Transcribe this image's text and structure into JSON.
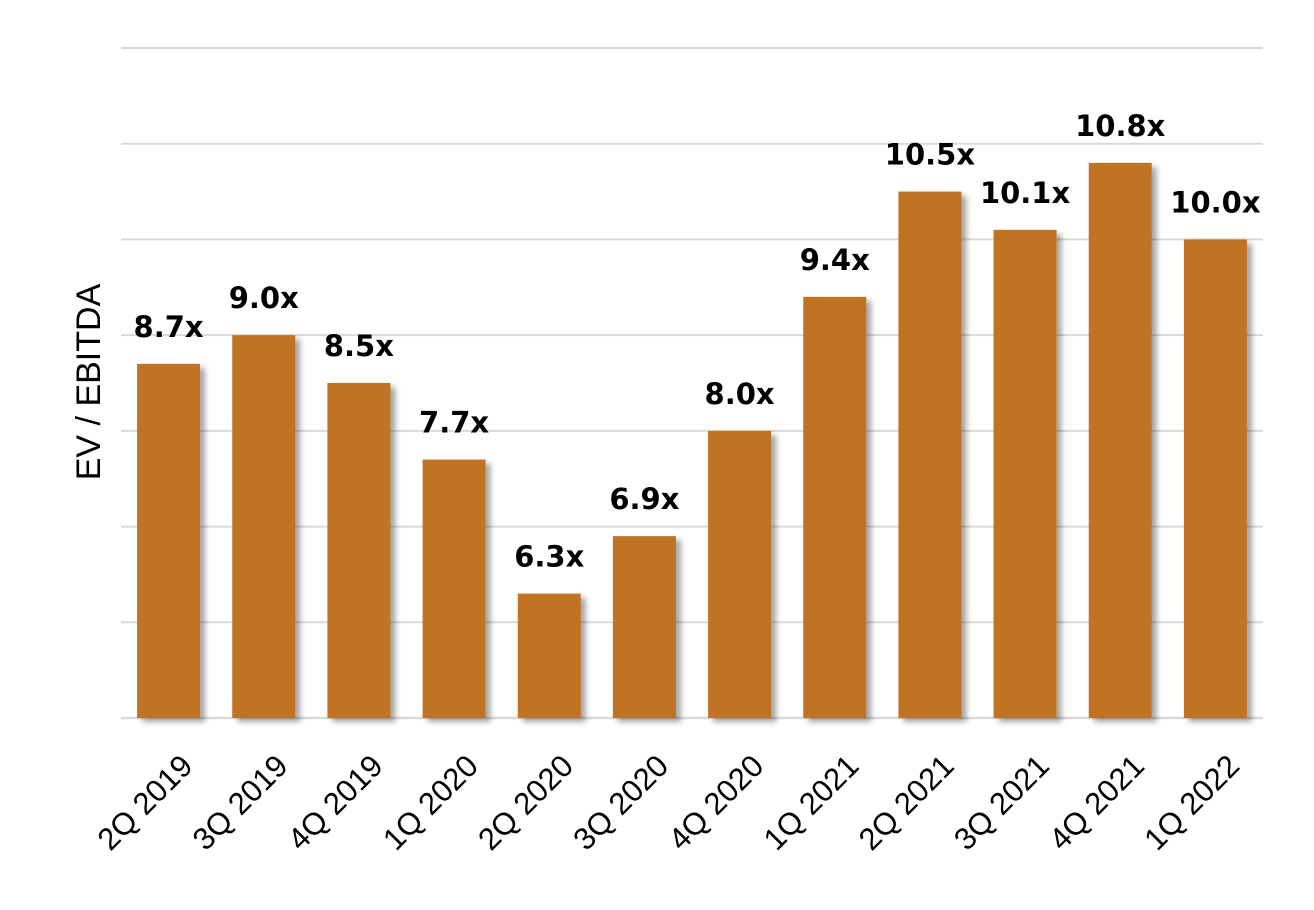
{
  "chart_data": {
    "type": "bar",
    "title": "",
    "xlabel": "",
    "ylabel": "EV / EBITDA",
    "categories": [
      "2Q 2019",
      "3Q 2019",
      "4Q 2019",
      "1Q 2020",
      "2Q 2020",
      "3Q 2020",
      "4Q 2020",
      "1Q 2021",
      "2Q 2021",
      "3Q 2021",
      "4Q 2021",
      "1Q 2022"
    ],
    "values": [
      8.7,
      9.0,
      8.5,
      7.7,
      6.3,
      6.9,
      8.0,
      9.4,
      10.5,
      10.1,
      10.8,
      10.0
    ],
    "data_labels": [
      "8.7x",
      "9.0x",
      "8.5x",
      "7.7x",
      "6.3x",
      "6.9x",
      "8.0x",
      "9.4x",
      "10.5x",
      "10.1x",
      "10.8x",
      "10.0x"
    ],
    "ylim": [
      5,
      12
    ],
    "grid": true,
    "legend": "none",
    "bar_color": "#c07320",
    "grid_color": "#d9d9d9"
  }
}
